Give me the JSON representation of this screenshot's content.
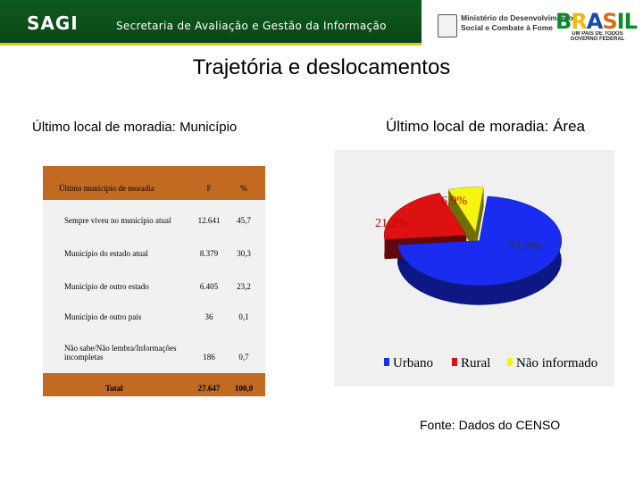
{
  "header": {
    "brand": "SAGI",
    "secretaria": "Secretaria de Avaliação e Gestão da Informação",
    "ministry_line1": "Ministério do Desenvolvimento",
    "ministry_line2": "Social e Combate à Fome",
    "brasil_word": "BRASIL",
    "brasil_tagline": "UM PAÍS DE TODOS",
    "brasil_gov": "GOVERNO FEDERAL"
  },
  "page_title": "Trajetória e deslocamentos",
  "left_subtitle": "Último local de moradia: Município",
  "right_subtitle": "Último local de moradia: Área",
  "table": {
    "headers": {
      "label": "Último município de moradia",
      "f": "F",
      "pct": "%"
    },
    "rows": [
      {
        "label": "Sempre viveu no município atual",
        "f": "12.641",
        "pct": "45,7"
      },
      {
        "label": "Município do estado atual",
        "f": "8.379",
        "pct": "30,3"
      },
      {
        "label": "Município de outro estado",
        "f": "6.405",
        "pct": "23,2"
      },
      {
        "label": "Município de outro país",
        "f": "36",
        "pct": "0,1"
      },
      {
        "label": "Não sabe/Não lembra/Informações incompletas",
        "f": "186",
        "pct": "0,7"
      }
    ],
    "total": {
      "label": "Total",
      "f": "27.647",
      "pct": "100,0"
    }
  },
  "chart_data": {
    "type": "pie",
    "style": "3d-exploded",
    "categories": [
      "Urbano",
      "Rural",
      "Não informado"
    ],
    "values": [
      71.9,
      21.2,
      6.9
    ],
    "labels": [
      "71,9%",
      "21,2%",
      "6,9%"
    ],
    "colors": [
      "#1a2cf0",
      "#dd1111",
      "#f5f50f"
    ],
    "legend_position": "bottom"
  },
  "source": "Fonte: Dados do CENSO",
  "colors": {
    "header_green": "#0d5a1e",
    "header_accent": "#e8c21a",
    "table_header": "#c26a22",
    "table_body": "#f1f1f1"
  }
}
